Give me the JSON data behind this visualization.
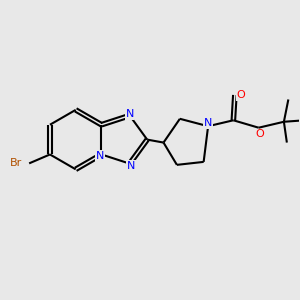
{
  "bg_color": "#e8e8e8",
  "bond_color": "#000000",
  "N_color": "#0000ff",
  "O_color": "#ff0000",
  "Br_color": "#b05000",
  "line_width": 1.5,
  "dbo": 0.06,
  "xlim": [
    0,
    10
  ],
  "ylim": [
    0,
    10
  ]
}
